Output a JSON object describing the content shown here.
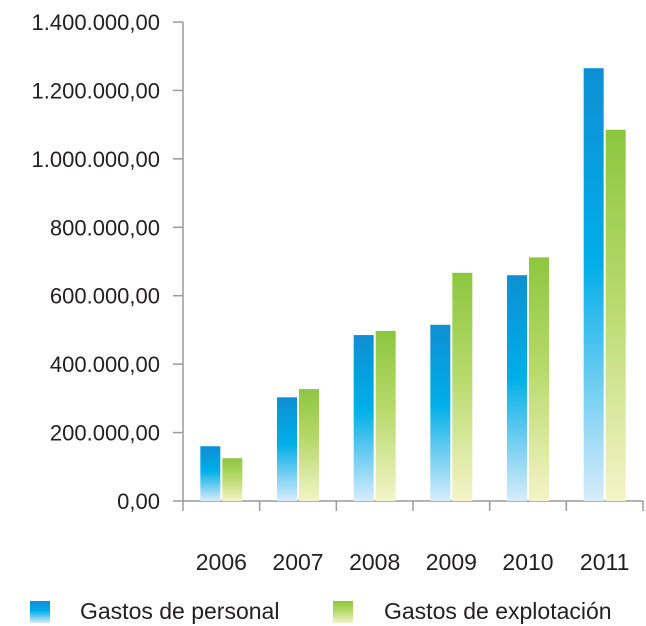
{
  "chart_data": {
    "type": "bar",
    "categories": [
      "2006",
      "2007",
      "2008",
      "2009",
      "2010",
      "2011"
    ],
    "series": [
      {
        "name": "Gastos de personal",
        "values": [
          160000,
          303000,
          485000,
          515000,
          660000,
          1265000
        ]
      },
      {
        "name": "Gastos de explotación",
        "values": [
          125000,
          327000,
          497000,
          667000,
          712000,
          1085000
        ]
      }
    ],
    "ylim": [
      0,
      1400000
    ],
    "yticks": [
      "0,00",
      "200.000,00",
      "400.000,00",
      "600.000,00",
      "800.000,00",
      "1.000.000,00",
      "1.200.000,00",
      "1.400.000,00"
    ],
    "title": "",
    "xlabel": "",
    "ylabel": "",
    "grid": false,
    "legend_position": "bottom",
    "colors": {
      "personal_top": "#0f8fd4",
      "personal_mid": "#00aee8",
      "personal_bottom": "#d8ecfa",
      "explotacion_top": "#8cc63f",
      "explotacion_mid": "#b6d96a",
      "explotacion_bottom": "#f4f4c8",
      "axis": "#9a9a9a"
    }
  }
}
